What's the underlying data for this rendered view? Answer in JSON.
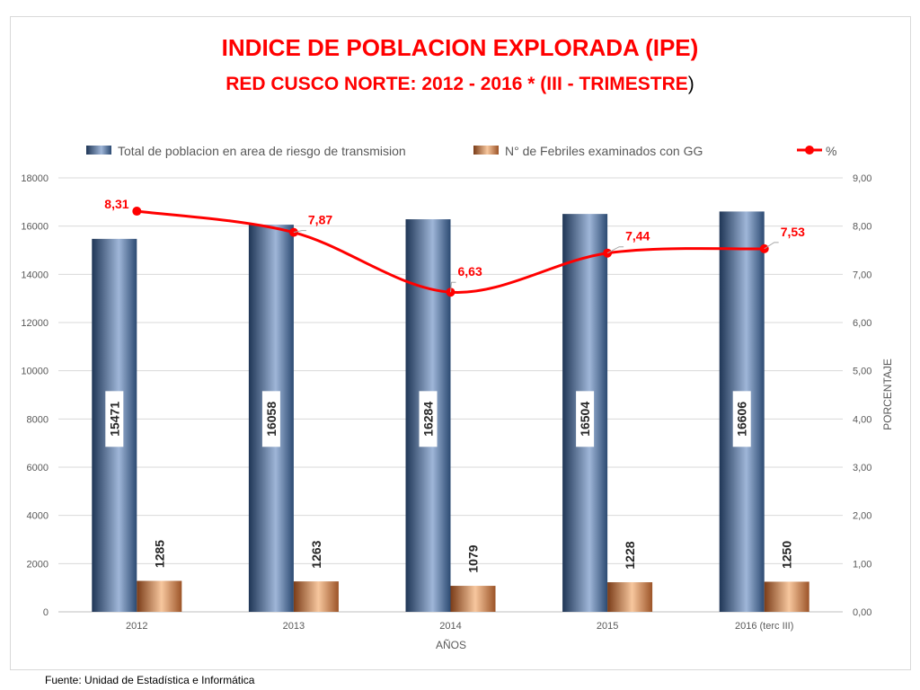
{
  "chart_data": {
    "type": "bar",
    "title_line1": "INDICE  DE POBLACION EXPLORADA (IPE)",
    "title_line2": "RED CUSCO NORTE: 2012 - 2016 * (III - TRIMESTRE",
    "title_line2_suffix": ")",
    "xlabel": "AÑOS",
    "ylabel_right": "PORCENTAJE",
    "categories": [
      "2012",
      "2013",
      "2014",
      "2015",
      "2016 (terc III)"
    ],
    "y_left": {
      "min": 0,
      "max": 18000,
      "ticks": [
        "0",
        "2000",
        "4000",
        "6000",
        "8000",
        "10000",
        "12000",
        "14000",
        "16000",
        "18000"
      ]
    },
    "y_right": {
      "min": 0,
      "max": 9,
      "ticks": [
        "0,00",
        "1,00",
        "2,00",
        "3,00",
        "4,00",
        "5,00",
        "6,00",
        "7,00",
        "8,00",
        "9,00"
      ]
    },
    "grid": true,
    "legend_position": "top",
    "series": [
      {
        "name": "Total de poblacion  en area de riesgo de transmision",
        "type": "bar",
        "axis": "left",
        "values": [
          15471,
          16058,
          16284,
          16504,
          16606
        ],
        "labels": [
          "15471",
          "16058",
          "16284",
          "16504",
          "16606"
        ],
        "color": "#4a6a9a"
      },
      {
        "name": "N° de Febriles examinados  con  GG",
        "type": "bar",
        "axis": "left",
        "values": [
          1285,
          1263,
          1079,
          1228,
          1250
        ],
        "labels": [
          "1285",
          "1263",
          "1079",
          "1228",
          "1250"
        ],
        "color": "#e8a070"
      },
      {
        "name": "%",
        "type": "line",
        "axis": "right",
        "values": [
          8.31,
          7.87,
          6.63,
          7.44,
          7.53
        ],
        "labels": [
          "8,31",
          "7,87",
          "6,63",
          "7,44",
          "7,53"
        ],
        "color": "#ff0000"
      }
    ]
  },
  "footer": {
    "source": "Fuente: Unidad de Estadística e Informática"
  }
}
